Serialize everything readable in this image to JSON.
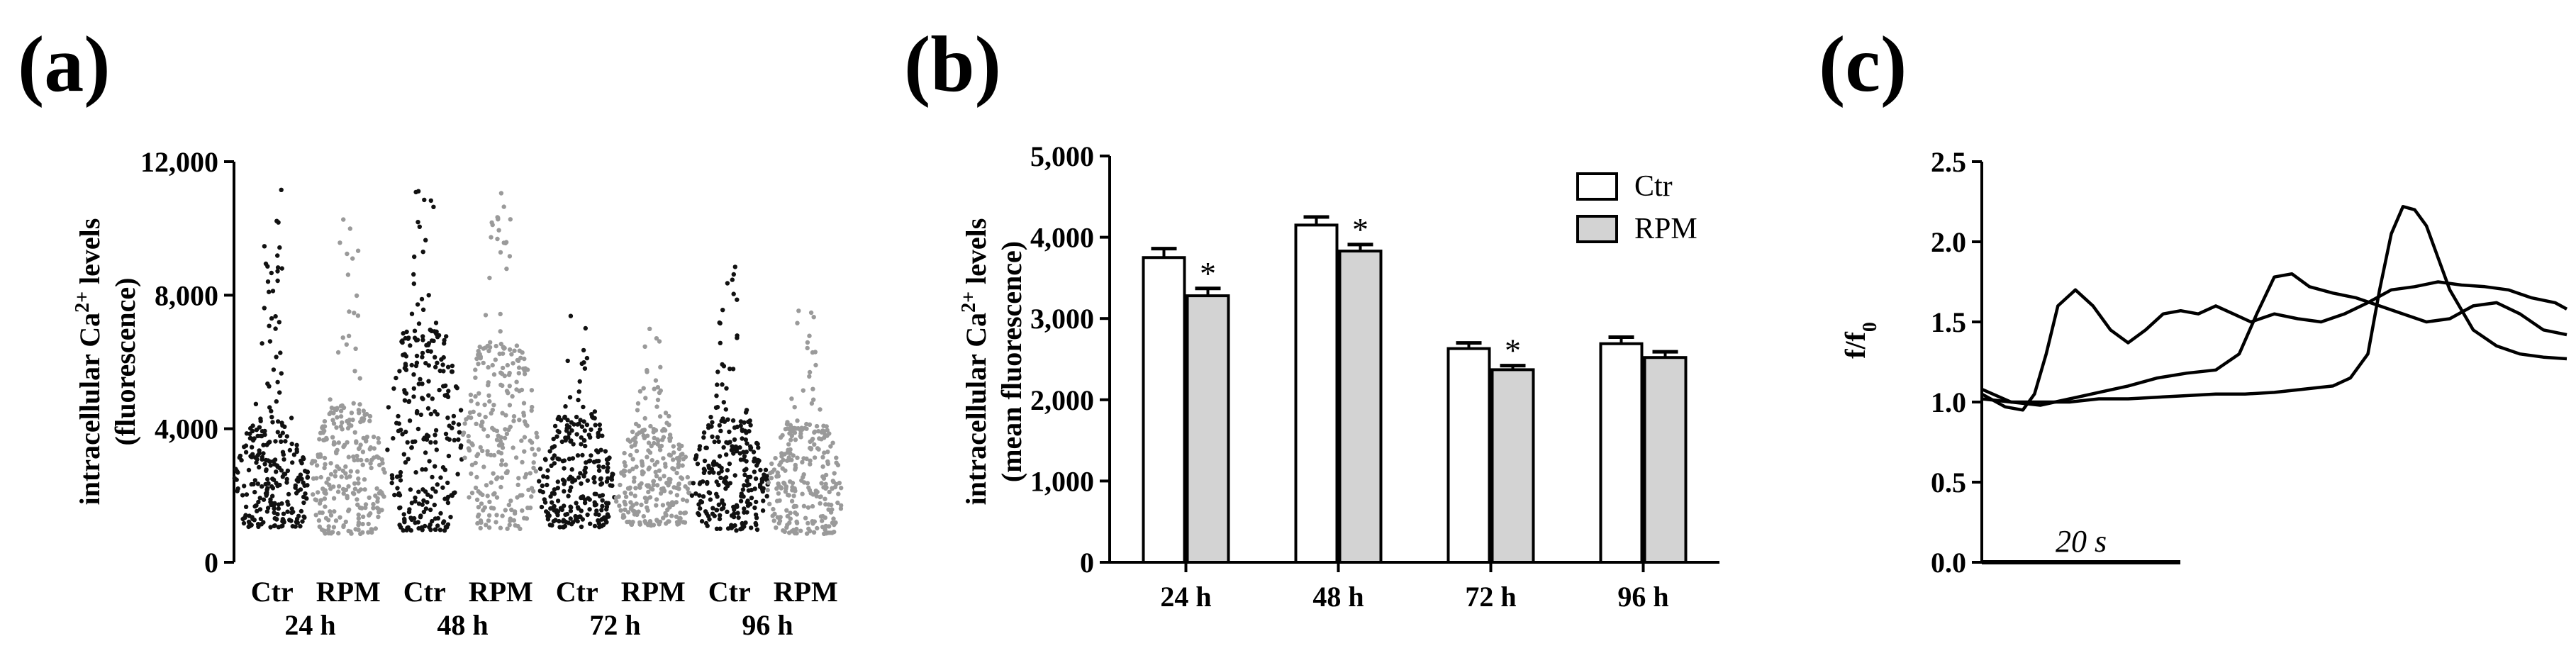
{
  "panels": {
    "a": "(a)",
    "b": "(b)",
    "c": "(c)"
  },
  "chart_data": [
    {
      "type": "scatter",
      "panel": "(a)",
      "ylabel_line1": "intracellular Ca",
      "ylabel_sup": "2+",
      "ylabel_line1_end": " levels",
      "ylabel_line2": "(fluorescence)",
      "ylim": [
        0,
        12000
      ],
      "yticks": [
        0,
        4000,
        8000,
        12000
      ],
      "ytick_labels": [
        "0",
        "4,000",
        "8,000",
        "12,000"
      ],
      "groups": [
        {
          "label": "Ctr",
          "time": "24 h",
          "color": "#111111",
          "min": 1050,
          "max": 11700,
          "center": 2300
        },
        {
          "label": "RPM",
          "time": "24 h",
          "color": "#9a9a9a",
          "min": 850,
          "max": 10500,
          "center": 2500
        },
        {
          "label": "Ctr",
          "time": "48 h",
          "color": "#111111",
          "min": 950,
          "max": 11800,
          "center": 3700
        },
        {
          "label": "RPM",
          "time": "48 h",
          "color": "#9a9a9a",
          "min": 1000,
          "max": 11400,
          "center": 3500
        },
        {
          "label": "Ctr",
          "time": "72 h",
          "color": "#111111",
          "min": 1050,
          "max": 7400,
          "center": 2300
        },
        {
          "label": "RPM",
          "time": "72 h",
          "color": "#9a9a9a",
          "min": 1100,
          "max": 7100,
          "center": 2200
        },
        {
          "label": "Ctr",
          "time": "96 h",
          "color": "#111111",
          "min": 950,
          "max": 9100,
          "center": 2300
        },
        {
          "label": "RPM",
          "time": "96 h",
          "color": "#9a9a9a",
          "min": 850,
          "max": 7900,
          "center": 2200
        }
      ],
      "time_labels": [
        "24 h",
        "48 h",
        "72 h",
        "96 h"
      ]
    },
    {
      "type": "bar",
      "panel": "(b)",
      "ylabel_line1": "intracellular Ca",
      "ylabel_sup": "2+",
      "ylabel_line1_end": " levels",
      "ylabel_line2": "(mean fluorescence)",
      "ylim": [
        0,
        5000
      ],
      "yticks": [
        0,
        1000,
        2000,
        3000,
        4000,
        5000
      ],
      "ytick_labels": [
        "0",
        "1,000",
        "2,000",
        "3,000",
        "4,000",
        "5,000"
      ],
      "categories": [
        "24 h",
        "48  h",
        "72 h",
        "96 h"
      ],
      "series": [
        {
          "name": "Ctr",
          "fill": "#ffffff",
          "values": [
            3750,
            4150,
            2630,
            2690
          ],
          "errors": [
            110,
            100,
            70,
            80
          ],
          "significant": [
            false,
            false,
            false,
            false
          ]
        },
        {
          "name": "RPM",
          "fill": "#d3d3d3",
          "values": [
            3280,
            3830,
            2370,
            2520
          ],
          "errors": [
            90,
            80,
            50,
            70
          ],
          "significant": [
            true,
            true,
            true,
            false
          ]
        }
      ],
      "significance_marker": "*",
      "legend": "top-right"
    },
    {
      "type": "line",
      "panel": "(c)",
      "ylabel": "f/f",
      "ylabel_sub": "0",
      "ylim": [
        0,
        2.5
      ],
      "yticks": [
        0,
        0.5,
        1.0,
        1.5,
        2.0,
        2.5
      ],
      "ytick_labels": [
        "0.0",
        "0.5",
        "1.0",
        "1.5",
        "2.0",
        "2.5"
      ],
      "scale_bar": "20 s",
      "xlim": [
        0,
        100
      ],
      "series": [
        {
          "x": [
            0,
            4,
            7,
            9,
            11,
            13,
            16,
            19,
            22,
            25,
            28,
            31,
            34,
            37,
            40,
            43,
            46,
            50,
            54,
            58,
            62,
            66,
            70,
            74,
            78,
            82,
            86,
            90,
            94,
            98,
            100
          ],
          "y": [
            1.05,
            0.97,
            0.95,
            1.05,
            1.3,
            1.6,
            1.7,
            1.6,
            1.45,
            1.37,
            1.45,
            1.55,
            1.57,
            1.55,
            1.6,
            1.55,
            1.5,
            1.55,
            1.52,
            1.5,
            1.55,
            1.62,
            1.7,
            1.72,
            1.75,
            1.73,
            1.72,
            1.7,
            1.65,
            1.62,
            1.58
          ]
        },
        {
          "x": [
            0,
            5,
            10,
            15,
            20,
            25,
            30,
            35,
            40,
            44,
            47,
            50,
            53,
            56,
            60,
            64,
            68,
            72,
            76,
            80,
            84,
            88,
            92,
            96,
            100
          ],
          "y": [
            1.08,
            1.0,
            0.98,
            1.02,
            1.06,
            1.1,
            1.15,
            1.18,
            1.2,
            1.3,
            1.55,
            1.78,
            1.8,
            1.72,
            1.68,
            1.65,
            1.6,
            1.55,
            1.5,
            1.52,
            1.6,
            1.62,
            1.55,
            1.45,
            1.42
          ]
        },
        {
          "x": [
            0,
            5,
            10,
            15,
            20,
            25,
            30,
            35,
            40,
            45,
            50,
            55,
            60,
            63,
            66,
            68,
            70,
            72,
            74,
            76,
            78,
            80,
            84,
            88,
            92,
            96,
            100
          ],
          "y": [
            1.02,
            1.0,
            1.0,
            1.0,
            1.02,
            1.02,
            1.03,
            1.04,
            1.05,
            1.05,
            1.06,
            1.08,
            1.1,
            1.15,
            1.3,
            1.7,
            2.05,
            2.22,
            2.2,
            2.1,
            1.9,
            1.7,
            1.45,
            1.35,
            1.3,
            1.28,
            1.27
          ]
        }
      ]
    }
  ]
}
